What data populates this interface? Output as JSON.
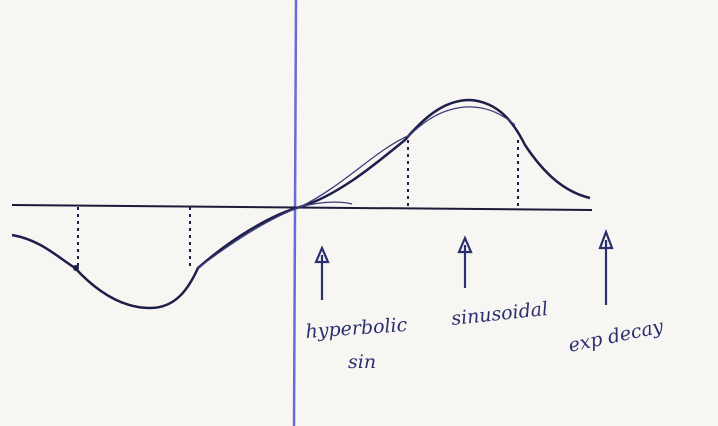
{
  "annotations": [
    {
      "lines": [
        "hyperbolic",
        "sin"
      ]
    },
    {
      "lines": [
        "sinusoidal"
      ]
    },
    {
      "lines": [
        "exp decay"
      ]
    }
  ]
}
